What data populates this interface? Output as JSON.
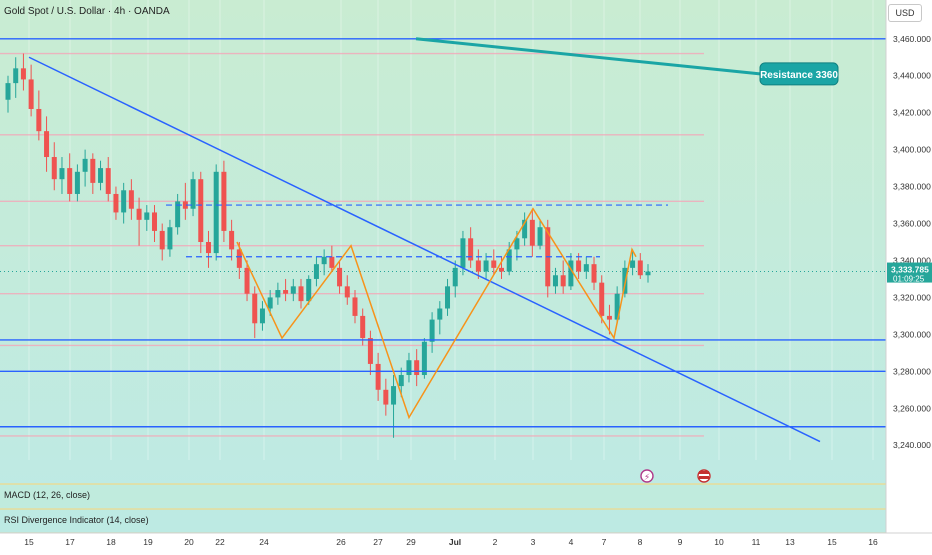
{
  "header": {
    "title": "Gold Spot / U.S. Dollar · 4h · OANDA",
    "currency": "USD"
  },
  "panes": [
    {
      "label": "MACD (12, 26, close)"
    },
    {
      "label": "RSI Divergence Indicator (14, close)"
    }
  ],
  "colors": {
    "up": "#26a69a",
    "down": "#ef5350",
    "trend": "#2962ff",
    "zigzag": "#f7931a",
    "callout": "#1aa5a5",
    "bg_top": "#c9ecd2",
    "bg_bottom": "#bdeae6"
  },
  "chart_data": {
    "type": "candlestick",
    "title": "Gold Spot / U.S. Dollar · 4h · OANDA",
    "ylim": [
      3232,
      3468
    ],
    "y_ticks": [
      "3,460.000",
      "3,440.000",
      "3,420.000",
      "3,400.000",
      "3,380.000",
      "3,360.000",
      "3,340.000",
      "3,320.000",
      "3,300.000",
      "3,280.000",
      "3,260.000",
      "3,240.000"
    ],
    "x_ticks": [
      "15",
      "17",
      "18",
      "19",
      "20",
      "22",
      "24",
      "26",
      "27",
      "29",
      "Jul",
      "2",
      "3",
      "4",
      "7",
      "8",
      "9",
      "10",
      "11",
      "13",
      "15",
      "16"
    ],
    "last_price": {
      "value": "3,333.785",
      "countdown": "01:09:25"
    },
    "candles": [
      {
        "o": 3427,
        "h": 3440,
        "l": 3420,
        "c": 3436
      },
      {
        "o": 3436,
        "h": 3450,
        "l": 3428,
        "c": 3444
      },
      {
        "o": 3444,
        "h": 3452,
        "l": 3432,
        "c": 3438
      },
      {
        "o": 3438,
        "h": 3446,
        "l": 3418,
        "c": 3422
      },
      {
        "o": 3422,
        "h": 3432,
        "l": 3405,
        "c": 3410
      },
      {
        "o": 3410,
        "h": 3418,
        "l": 3388,
        "c": 3396
      },
      {
        "o": 3396,
        "h": 3404,
        "l": 3378,
        "c": 3384
      },
      {
        "o": 3384,
        "h": 3396,
        "l": 3376,
        "c": 3390
      },
      {
        "o": 3390,
        "h": 3398,
        "l": 3372,
        "c": 3376
      },
      {
        "o": 3376,
        "h": 3392,
        "l": 3372,
        "c": 3388
      },
      {
        "o": 3388,
        "h": 3400,
        "l": 3380,
        "c": 3395
      },
      {
        "o": 3395,
        "h": 3398,
        "l": 3376,
        "c": 3382
      },
      {
        "o": 3382,
        "h": 3394,
        "l": 3378,
        "c": 3390
      },
      {
        "o": 3390,
        "h": 3396,
        "l": 3372,
        "c": 3376
      },
      {
        "o": 3376,
        "h": 3380,
        "l": 3362,
        "c": 3366
      },
      {
        "o": 3366,
        "h": 3382,
        "l": 3360,
        "c": 3378
      },
      {
        "o": 3378,
        "h": 3384,
        "l": 3362,
        "c": 3368
      },
      {
        "o": 3368,
        "h": 3374,
        "l": 3348,
        "c": 3362
      },
      {
        "o": 3362,
        "h": 3370,
        "l": 3356,
        "c": 3366
      },
      {
        "o": 3366,
        "h": 3370,
        "l": 3350,
        "c": 3356
      },
      {
        "o": 3356,
        "h": 3360,
        "l": 3340,
        "c": 3346
      },
      {
        "o": 3346,
        "h": 3362,
        "l": 3342,
        "c": 3358
      },
      {
        "o": 3358,
        "h": 3376,
        "l": 3354,
        "c": 3372
      },
      {
        "o": 3372,
        "h": 3382,
        "l": 3362,
        "c": 3368
      },
      {
        "o": 3368,
        "h": 3388,
        "l": 3364,
        "c": 3384
      },
      {
        "o": 3384,
        "h": 3388,
        "l": 3344,
        "c": 3350
      },
      {
        "o": 3350,
        "h": 3356,
        "l": 3336,
        "c": 3344
      },
      {
        "o": 3344,
        "h": 3392,
        "l": 3340,
        "c": 3388
      },
      {
        "o": 3388,
        "h": 3394,
        "l": 3350,
        "c": 3356
      },
      {
        "o": 3356,
        "h": 3362,
        "l": 3340,
        "c": 3346
      },
      {
        "o": 3346,
        "h": 3350,
        "l": 3330,
        "c": 3336
      },
      {
        "o": 3336,
        "h": 3340,
        "l": 3318,
        "c": 3322
      },
      {
        "o": 3322,
        "h": 3326,
        "l": 3298,
        "c": 3306
      },
      {
        "o": 3306,
        "h": 3318,
        "l": 3302,
        "c": 3314
      },
      {
        "o": 3314,
        "h": 3324,
        "l": 3310,
        "c": 3320
      },
      {
        "o": 3320,
        "h": 3328,
        "l": 3316,
        "c": 3324
      },
      {
        "o": 3324,
        "h": 3330,
        "l": 3318,
        "c": 3322
      },
      {
        "o": 3322,
        "h": 3330,
        "l": 3318,
        "c": 3326
      },
      {
        "o": 3326,
        "h": 3330,
        "l": 3314,
        "c": 3318
      },
      {
        "o": 3318,
        "h": 3332,
        "l": 3316,
        "c": 3330
      },
      {
        "o": 3330,
        "h": 3342,
        "l": 3326,
        "c": 3338
      },
      {
        "o": 3338,
        "h": 3346,
        "l": 3332,
        "c": 3342
      },
      {
        "o": 3342,
        "h": 3348,
        "l": 3334,
        "c": 3336
      },
      {
        "o": 3336,
        "h": 3340,
        "l": 3322,
        "c": 3326
      },
      {
        "o": 3326,
        "h": 3332,
        "l": 3316,
        "c": 3320
      },
      {
        "o": 3320,
        "h": 3324,
        "l": 3306,
        "c": 3310
      },
      {
        "o": 3310,
        "h": 3314,
        "l": 3294,
        "c": 3298
      },
      {
        "o": 3298,
        "h": 3302,
        "l": 3278,
        "c": 3284
      },
      {
        "o": 3284,
        "h": 3290,
        "l": 3264,
        "c": 3270
      },
      {
        "o": 3270,
        "h": 3276,
        "l": 3256,
        "c": 3262
      },
      {
        "o": 3262,
        "h": 3278,
        "l": 3244,
        "c": 3272
      },
      {
        "o": 3272,
        "h": 3282,
        "l": 3266,
        "c": 3278
      },
      {
        "o": 3278,
        "h": 3290,
        "l": 3274,
        "c": 3286
      },
      {
        "o": 3286,
        "h": 3292,
        "l": 3272,
        "c": 3278
      },
      {
        "o": 3278,
        "h": 3298,
        "l": 3276,
        "c": 3296
      },
      {
        "o": 3296,
        "h": 3312,
        "l": 3290,
        "c": 3308
      },
      {
        "o": 3308,
        "h": 3318,
        "l": 3300,
        "c": 3314
      },
      {
        "o": 3314,
        "h": 3330,
        "l": 3310,
        "c": 3326
      },
      {
        "o": 3326,
        "h": 3340,
        "l": 3320,
        "c": 3336
      },
      {
        "o": 3336,
        "h": 3356,
        "l": 3332,
        "c": 3352
      },
      {
        "o": 3352,
        "h": 3358,
        "l": 3336,
        "c": 3340
      },
      {
        "o": 3340,
        "h": 3346,
        "l": 3330,
        "c": 3334
      },
      {
        "o": 3334,
        "h": 3344,
        "l": 3330,
        "c": 3340
      },
      {
        "o": 3340,
        "h": 3346,
        "l": 3332,
        "c": 3336
      },
      {
        "o": 3336,
        "h": 3342,
        "l": 3330,
        "c": 3334
      },
      {
        "o": 3334,
        "h": 3350,
        "l": 3332,
        "c": 3346
      },
      {
        "o": 3346,
        "h": 3356,
        "l": 3340,
        "c": 3352
      },
      {
        "o": 3352,
        "h": 3366,
        "l": 3348,
        "c": 3362
      },
      {
        "o": 3362,
        "h": 3368,
        "l": 3342,
        "c": 3348
      },
      {
        "o": 3348,
        "h": 3362,
        "l": 3346,
        "c": 3358
      },
      {
        "o": 3358,
        "h": 3362,
        "l": 3320,
        "c": 3326
      },
      {
        "o": 3326,
        "h": 3336,
        "l": 3322,
        "c": 3332
      },
      {
        "o": 3332,
        "h": 3340,
        "l": 3322,
        "c": 3326
      },
      {
        "o": 3326,
        "h": 3344,
        "l": 3324,
        "c": 3340
      },
      {
        "o": 3340,
        "h": 3344,
        "l": 3330,
        "c": 3334
      },
      {
        "o": 3334,
        "h": 3342,
        "l": 3330,
        "c": 3338
      },
      {
        "o": 3338,
        "h": 3342,
        "l": 3324,
        "c": 3328
      },
      {
        "o": 3328,
        "h": 3332,
        "l": 3306,
        "c": 3310
      },
      {
        "o": 3310,
        "h": 3316,
        "l": 3300,
        "c": 3308
      },
      {
        "o": 3308,
        "h": 3326,
        "l": 3306,
        "c": 3322
      },
      {
        "o": 3322,
        "h": 3340,
        "l": 3320,
        "c": 3336
      },
      {
        "o": 3336,
        "h": 3346,
        "l": 3332,
        "c": 3340
      },
      {
        "o": 3340,
        "h": 3344,
        "l": 3330,
        "c": 3332
      },
      {
        "o": 3332,
        "h": 3338,
        "l": 3328,
        "c": 3334
      }
    ],
    "trendlines": [
      {
        "from": [
          "15",
          3450
        ],
        "to": [
          "13",
          3242
        ]
      },
      {
        "from": [
          "29",
          3460
        ],
        "to": [
          "11",
          3441
        ]
      }
    ],
    "horizontal_lines": [
      3460,
      3297,
      3280,
      3250
    ],
    "dashed_levels": [
      3370,
      3342
    ],
    "zigzag": [
      3350,
      3298,
      3348,
      3255,
      3368,
      3298,
      3346,
      3342
    ],
    "annotations": [
      {
        "text": "Resistance 3360",
        "price": 3441
      }
    ]
  }
}
